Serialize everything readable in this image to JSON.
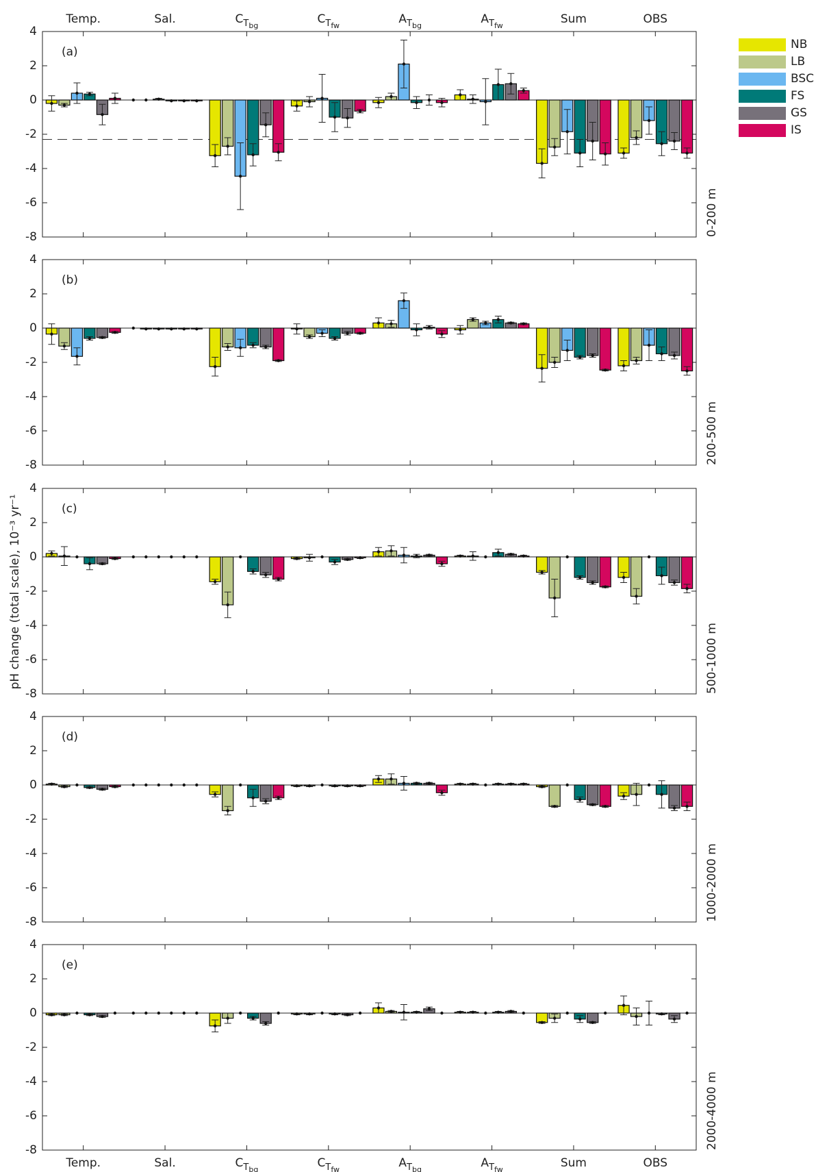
{
  "chart_data": {
    "type": "bar",
    "ylabel": "pH change (total scale), 10⁻³ yr⁻¹",
    "categories": [
      "Temp.",
      "Sal.",
      "CTbg",
      "CTfw",
      "ATbg",
      "ATfw",
      "Sum",
      "OBS"
    ],
    "series": [
      {
        "name": "NB",
        "color": "#e6e600"
      },
      {
        "name": "LB",
        "color": "#bcc98a"
      },
      {
        "name": "BSC",
        "color": "#6bb7f0"
      },
      {
        "name": "FS",
        "color": "#007a78"
      },
      {
        "name": "GS",
        "color": "#77717a"
      },
      {
        "name": "IS",
        "color": "#d4075e"
      }
    ],
    "panels": [
      {
        "label": "(a)",
        "depth": "0-200 m",
        "ylim": [
          -8,
          4
        ],
        "yticks": [
          -8,
          -6,
          -4,
          -2,
          0,
          2,
          4
        ],
        "reference_line": -2.3,
        "values": [
          [
            -0.2,
            0,
            -3.25,
            -0.35,
            -0.15,
            0.3,
            -3.7,
            -3.1
          ],
          [
            -0.3,
            0,
            -2.7,
            -0.1,
            0.2,
            0.05,
            -2.75,
            -2.2
          ],
          [
            0.4,
            0.05,
            -4.45,
            0.1,
            2.1,
            -0.1,
            -1.85,
            -1.2
          ],
          [
            0.35,
            -0.05,
            -3.2,
            -1.0,
            -0.15,
            0.9,
            -3.1,
            -2.55
          ],
          [
            -0.85,
            -0.05,
            -1.45,
            -1.05,
            0,
            0.95,
            -2.4,
            -2.4
          ],
          [
            0.1,
            -0.05,
            -3.05,
            -0.65,
            -0.15,
            0.55,
            -3.15,
            -3.1
          ]
        ],
        "errors": [
          [
            0.45,
            0,
            0.65,
            0.3,
            0.3,
            0.3,
            0.85,
            0.3
          ],
          [
            0.1,
            0,
            0.5,
            0.3,
            0.2,
            0.25,
            0.5,
            0.4
          ],
          [
            0.6,
            0.05,
            1.95,
            1.4,
            1.4,
            1.35,
            1.3,
            0.8
          ],
          [
            0.1,
            0,
            0.65,
            0.85,
            0.35,
            0.9,
            0.8,
            0.7
          ],
          [
            0.6,
            0,
            0.7,
            0.55,
            0.3,
            0.6,
            1.1,
            0.5
          ],
          [
            0.3,
            0,
            0.5,
            0.1,
            0.25,
            0.15,
            0.65,
            0.3
          ]
        ]
      },
      {
        "label": "(b)",
        "depth": "200-500 m",
        "ylim": [
          -8,
          4
        ],
        "yticks": [
          -8,
          -6,
          -4,
          -2,
          0,
          2,
          4
        ],
        "values": [
          [
            -0.35,
            0,
            -2.25,
            -0.05,
            0.3,
            -0.1,
            -2.35,
            -2.2
          ],
          [
            -1.05,
            -0.05,
            -1.1,
            -0.5,
            0.25,
            0.5,
            -2.0,
            -1.9
          ],
          [
            -1.65,
            -0.05,
            -1.15,
            -0.3,
            1.6,
            0.3,
            -1.3,
            -1.0
          ],
          [
            -0.6,
            -0.05,
            -1.0,
            -0.6,
            -0.1,
            0.5,
            -1.7,
            -1.5
          ],
          [
            -0.55,
            -0.05,
            -1.1,
            -0.3,
            0.05,
            0.3,
            -1.6,
            -1.6
          ],
          [
            -0.25,
            -0.05,
            -1.9,
            -0.3,
            -0.35,
            0.25,
            -2.45,
            -2.5
          ]
        ],
        "errors": [
          [
            0.6,
            0,
            0.55,
            0.3,
            0.3,
            0.25,
            0.8,
            0.3
          ],
          [
            0.2,
            0,
            0.2,
            0.1,
            0.2,
            0.1,
            0.3,
            0.2
          ],
          [
            0.5,
            0,
            0.5,
            0.2,
            0.45,
            0.1,
            0.6,
            0.9
          ],
          [
            0.1,
            0,
            0.15,
            0.1,
            0.35,
            0.2,
            0.1,
            0.4
          ],
          [
            0.05,
            0,
            0.1,
            0.1,
            0.1,
            0.05,
            0.1,
            0.2
          ],
          [
            0.05,
            0,
            0.05,
            0.05,
            0.2,
            0.05,
            0.05,
            0.25
          ]
        ]
      },
      {
        "label": "(c)",
        "depth": "500-1000 m",
        "ylim": [
          -8,
          4
        ],
        "yticks": [
          -8,
          -6,
          -4,
          -2,
          0,
          2,
          4
        ],
        "values": [
          [
            0.2,
            0,
            -1.45,
            -0.1,
            0.3,
            0.05,
            -0.9,
            -1.2
          ],
          [
            0.05,
            0,
            -2.8,
            -0.05,
            0.35,
            0.05,
            -2.4,
            -2.3
          ],
          [
            0,
            0,
            0,
            0,
            0.1,
            0,
            0,
            0
          ],
          [
            -0.4,
            0,
            -0.85,
            -0.3,
            0.05,
            0.25,
            -1.2,
            -1.1
          ],
          [
            -0.4,
            0,
            -1.05,
            -0.15,
            0.1,
            0.15,
            -1.5,
            -1.5
          ],
          [
            -0.1,
            0,
            -1.3,
            -0.05,
            -0.4,
            0.05,
            -1.75,
            -1.85
          ]
        ],
        "errors": [
          [
            0.15,
            0,
            0.15,
            0.05,
            0.25,
            0.05,
            0.1,
            0.3
          ],
          [
            0.55,
            0,
            0.75,
            0.2,
            0.3,
            0.25,
            1.1,
            0.45
          ],
          [
            0,
            0,
            0,
            0,
            0.45,
            0,
            0,
            0
          ],
          [
            0.35,
            0,
            0.15,
            0.15,
            0.1,
            0.2,
            0.1,
            0.5
          ],
          [
            0.05,
            0,
            0.15,
            0.05,
            0.05,
            0.05,
            0.1,
            0.15
          ],
          [
            0.05,
            0,
            0.1,
            0.05,
            0.15,
            0.05,
            0.05,
            0.25
          ]
        ]
      },
      {
        "label": "(d)",
        "depth": "1000-2000 m",
        "ylim": [
          -8,
          4
        ],
        "yticks": [
          -8,
          -6,
          -4,
          -2,
          0,
          2,
          4
        ],
        "values": [
          [
            0.05,
            0,
            -0.55,
            -0.05,
            0.35,
            0.05,
            -0.1,
            -0.65
          ],
          [
            -0.1,
            0,
            -1.5,
            -0.05,
            0.35,
            0.05,
            -1.25,
            -0.55
          ],
          [
            0,
            0,
            0,
            0,
            0.1,
            0,
            0,
            0
          ],
          [
            -0.15,
            0,
            -0.75,
            -0.05,
            0.1,
            0.05,
            -0.85,
            -0.55
          ],
          [
            -0.25,
            0,
            -0.95,
            -0.05,
            0.1,
            0.05,
            -1.15,
            -1.35
          ],
          [
            -0.1,
            0,
            -0.75,
            -0.05,
            -0.45,
            0.05,
            -1.25,
            -1.25
          ]
        ],
        "errors": [
          [
            0.05,
            0,
            0.15,
            0.05,
            0.2,
            0.05,
            0.05,
            0.2
          ],
          [
            0.05,
            0,
            0.25,
            0.05,
            0.3,
            0.05,
            0.05,
            0.65
          ],
          [
            0,
            0,
            0,
            0,
            0.4,
            0,
            0,
            0
          ],
          [
            0.05,
            0,
            0.5,
            0.05,
            0.05,
            0.05,
            0.15,
            0.8
          ],
          [
            0.05,
            0,
            0.15,
            0.05,
            0.05,
            0.05,
            0.05,
            0.15
          ],
          [
            0.05,
            0,
            0.1,
            0.05,
            0.15,
            0.05,
            0.05,
            0.25
          ]
        ]
      },
      {
        "label": "(e)",
        "depth": "2000-4000 m",
        "ylim": [
          -8,
          4
        ],
        "yticks": [
          -8,
          -6,
          -4,
          -2,
          0,
          2,
          4
        ],
        "values": [
          [
            -0.1,
            0,
            -0.75,
            -0.05,
            0.3,
            0.05,
            -0.55,
            0.45
          ],
          [
            -0.1,
            0,
            -0.3,
            -0.05,
            0.1,
            0.05,
            -0.3,
            -0.2
          ],
          [
            0,
            0,
            0,
            0,
            0.05,
            0,
            0,
            0
          ],
          [
            -0.1,
            0,
            -0.3,
            -0.05,
            0.05,
            0.05,
            -0.35,
            -0.05
          ],
          [
            -0.2,
            0,
            -0.6,
            -0.1,
            0.25,
            0.1,
            -0.55,
            -0.35
          ],
          [
            0,
            0,
            0,
            0,
            0,
            0,
            0,
            0
          ]
        ],
        "errors": [
          [
            0.05,
            0,
            0.35,
            0.05,
            0.3,
            0.05,
            0.05,
            0.55
          ],
          [
            0.05,
            0,
            0.3,
            0.05,
            0.05,
            0.05,
            0.25,
            0.5
          ],
          [
            0,
            0,
            0,
            0,
            0.45,
            0,
            0,
            0.7
          ],
          [
            0.05,
            0,
            0.1,
            0.05,
            0.05,
            0.05,
            0.2,
            0.05
          ],
          [
            0.05,
            0,
            0.1,
            0.05,
            0.1,
            0.05,
            0.05,
            0.2
          ],
          [
            0,
            0,
            0,
            0,
            0,
            0,
            0,
            0
          ]
        ]
      }
    ]
  }
}
